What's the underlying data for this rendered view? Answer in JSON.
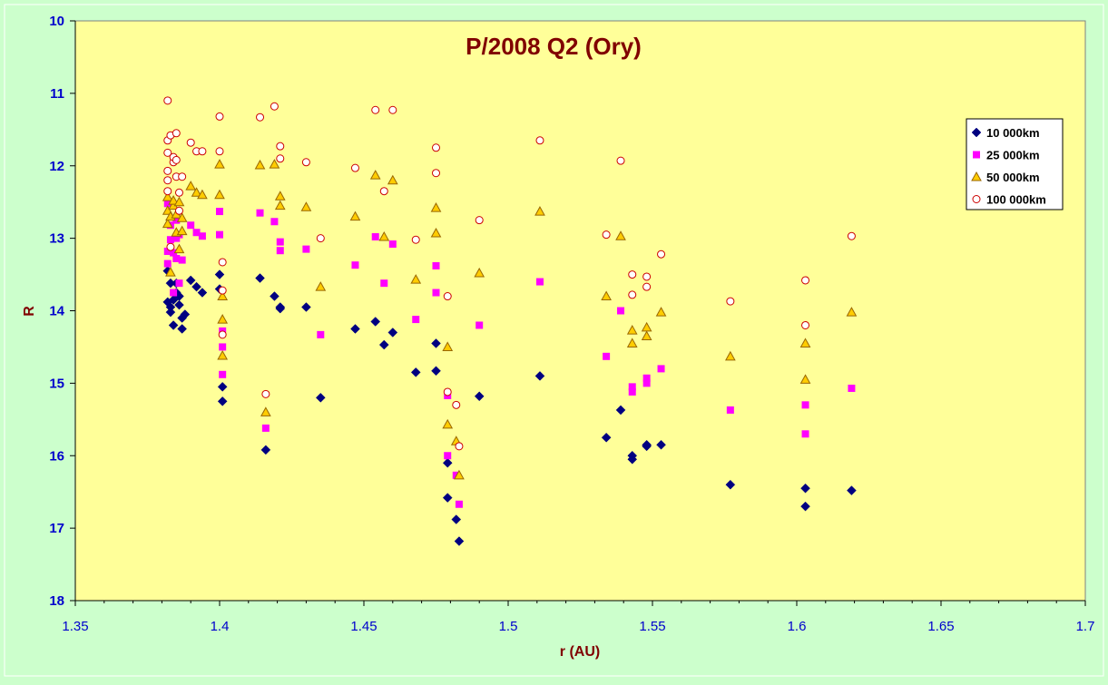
{
  "chart_data": {
    "type": "scatter",
    "title": "P/2008 Q2 (Ory)",
    "xlabel": "r (AU)",
    "ylabel": "R",
    "xlim": [
      1.35,
      1.7
    ],
    "ylim": [
      10,
      18
    ],
    "y_reversed": true,
    "grid": false,
    "legend_position": "right",
    "x_ticks": [
      "1.35",
      "1.4",
      "1.45",
      "1.5",
      "1.55",
      "1.6",
      "1.65",
      "1.7"
    ],
    "x_tick_values": [
      1.35,
      1.4,
      1.45,
      1.5,
      1.55,
      1.6,
      1.65,
      1.7
    ],
    "y_ticks": [
      "10",
      "11",
      "12",
      "13",
      "14",
      "15",
      "16",
      "17",
      "18"
    ],
    "y_tick_values": [
      10,
      11,
      12,
      13,
      14,
      15,
      16,
      17,
      18
    ],
    "colors": {
      "plot_background": "#ffff99",
      "page_background": "#ccffcc",
      "title": "#800000",
      "tick_labels": "#0000cc"
    },
    "series": [
      {
        "name": "10 000km",
        "marker": "diamond",
        "color": "#000080",
        "points": [
          [
            1.382,
            13.88
          ],
          [
            1.382,
            13.45
          ],
          [
            1.383,
            14.02
          ],
          [
            1.383,
            13.95
          ],
          [
            1.383,
            13.62
          ],
          [
            1.384,
            13.85
          ],
          [
            1.384,
            14.2
          ],
          [
            1.385,
            13.75
          ],
          [
            1.385,
            13.62
          ],
          [
            1.386,
            13.92
          ],
          [
            1.386,
            13.8
          ],
          [
            1.387,
            14.1
          ],
          [
            1.387,
            14.25
          ],
          [
            1.388,
            14.05
          ],
          [
            1.39,
            13.58
          ],
          [
            1.392,
            13.67
          ],
          [
            1.394,
            13.75
          ],
          [
            1.4,
            13.5
          ],
          [
            1.4,
            13.7
          ],
          [
            1.401,
            15.05
          ],
          [
            1.401,
            15.25
          ],
          [
            1.414,
            13.55
          ],
          [
            1.416,
            15.92
          ],
          [
            1.419,
            13.8
          ],
          [
            1.421,
            13.95
          ],
          [
            1.421,
            13.97
          ],
          [
            1.43,
            13.95
          ],
          [
            1.435,
            15.2
          ],
          [
            1.447,
            14.25
          ],
          [
            1.454,
            14.15
          ],
          [
            1.457,
            14.47
          ],
          [
            1.46,
            14.3
          ],
          [
            1.468,
            14.85
          ],
          [
            1.475,
            14.45
          ],
          [
            1.475,
            14.83
          ],
          [
            1.479,
            16.1
          ],
          [
            1.479,
            16.58
          ],
          [
            1.482,
            16.88
          ],
          [
            1.483,
            17.18
          ],
          [
            1.49,
            15.18
          ],
          [
            1.511,
            14.9
          ],
          [
            1.534,
            15.75
          ],
          [
            1.539,
            15.37
          ],
          [
            1.543,
            16.0
          ],
          [
            1.543,
            16.05
          ],
          [
            1.548,
            15.85
          ],
          [
            1.548,
            15.87
          ],
          [
            1.553,
            15.85
          ],
          [
            1.577,
            16.4
          ],
          [
            1.603,
            16.45
          ],
          [
            1.603,
            16.7
          ],
          [
            1.619,
            16.48
          ]
        ]
      },
      {
        "name": "25 000km",
        "marker": "square",
        "color": "#ff00ff",
        "points": [
          [
            1.382,
            12.52
          ],
          [
            1.382,
            13.18
          ],
          [
            1.382,
            13.35
          ],
          [
            1.383,
            12.82
          ],
          [
            1.383,
            13.02
          ],
          [
            1.384,
            13.2
          ],
          [
            1.384,
            13.75
          ],
          [
            1.385,
            12.75
          ],
          [
            1.385,
            13.0
          ],
          [
            1.385,
            13.28
          ],
          [
            1.386,
            13.62
          ],
          [
            1.386,
            12.95
          ],
          [
            1.387,
            13.3
          ],
          [
            1.39,
            12.82
          ],
          [
            1.392,
            12.92
          ],
          [
            1.394,
            12.97
          ],
          [
            1.4,
            12.63
          ],
          [
            1.4,
            12.95
          ],
          [
            1.401,
            14.28
          ],
          [
            1.401,
            14.5
          ],
          [
            1.401,
            14.88
          ],
          [
            1.414,
            12.65
          ],
          [
            1.416,
            15.62
          ],
          [
            1.419,
            12.77
          ],
          [
            1.421,
            13.05
          ],
          [
            1.421,
            13.17
          ],
          [
            1.43,
            13.15
          ],
          [
            1.435,
            14.33
          ],
          [
            1.447,
            13.37
          ],
          [
            1.454,
            12.98
          ],
          [
            1.457,
            13.62
          ],
          [
            1.46,
            13.08
          ],
          [
            1.468,
            14.12
          ],
          [
            1.475,
            13.38
          ],
          [
            1.475,
            13.75
          ],
          [
            1.479,
            15.17
          ],
          [
            1.479,
            16.0
          ],
          [
            1.482,
            16.27
          ],
          [
            1.483,
            16.67
          ],
          [
            1.49,
            14.2
          ],
          [
            1.511,
            13.6
          ],
          [
            1.534,
            14.63
          ],
          [
            1.539,
            14.0
          ],
          [
            1.543,
            15.05
          ],
          [
            1.543,
            15.12
          ],
          [
            1.548,
            14.93
          ],
          [
            1.548,
            15.0
          ],
          [
            1.553,
            14.8
          ],
          [
            1.577,
            15.37
          ],
          [
            1.603,
            15.3
          ],
          [
            1.603,
            15.7
          ],
          [
            1.619,
            15.07
          ]
        ]
      },
      {
        "name": "50 000km",
        "marker": "triangle",
        "color": "#ffcc00",
        "points": [
          [
            1.382,
            12.43
          ],
          [
            1.382,
            12.62
          ],
          [
            1.382,
            12.8
          ],
          [
            1.383,
            13.47
          ],
          [
            1.383,
            12.7
          ],
          [
            1.384,
            12.55
          ],
          [
            1.384,
            12.48
          ],
          [
            1.385,
            12.92
          ],
          [
            1.385,
            12.67
          ],
          [
            1.386,
            12.5
          ],
          [
            1.386,
            13.15
          ],
          [
            1.387,
            12.72
          ],
          [
            1.387,
            12.9
          ],
          [
            1.39,
            12.28
          ],
          [
            1.392,
            12.37
          ],
          [
            1.394,
            12.4
          ],
          [
            1.4,
            11.98
          ],
          [
            1.4,
            12.4
          ],
          [
            1.401,
            13.8
          ],
          [
            1.401,
            14.12
          ],
          [
            1.401,
            14.62
          ],
          [
            1.414,
            11.99
          ],
          [
            1.416,
            15.4
          ],
          [
            1.419,
            11.98
          ],
          [
            1.421,
            12.42
          ],
          [
            1.421,
            12.55
          ],
          [
            1.43,
            12.57
          ],
          [
            1.435,
            13.67
          ],
          [
            1.447,
            12.7
          ],
          [
            1.454,
            12.13
          ],
          [
            1.457,
            12.98
          ],
          [
            1.46,
            12.2
          ],
          [
            1.468,
            13.57
          ],
          [
            1.475,
            12.58
          ],
          [
            1.475,
            12.93
          ],
          [
            1.479,
            14.5
          ],
          [
            1.479,
            15.57
          ],
          [
            1.482,
            15.8
          ],
          [
            1.483,
            16.27
          ],
          [
            1.49,
            13.48
          ],
          [
            1.511,
            12.63
          ],
          [
            1.534,
            13.8
          ],
          [
            1.539,
            12.97
          ],
          [
            1.543,
            14.27
          ],
          [
            1.543,
            14.45
          ],
          [
            1.548,
            14.23
          ],
          [
            1.548,
            14.35
          ],
          [
            1.553,
            14.02
          ],
          [
            1.577,
            14.63
          ],
          [
            1.603,
            14.45
          ],
          [
            1.603,
            14.95
          ],
          [
            1.619,
            14.02
          ]
        ]
      },
      {
        "name": "100 000km",
        "marker": "circle",
        "color": "#cc0000",
        "points": [
          [
            1.382,
            11.1
          ],
          [
            1.382,
            11.65
          ],
          [
            1.382,
            11.82
          ],
          [
            1.382,
            12.07
          ],
          [
            1.382,
            12.2
          ],
          [
            1.382,
            12.35
          ],
          [
            1.383,
            11.58
          ],
          [
            1.383,
            13.12
          ],
          [
            1.384,
            11.95
          ],
          [
            1.384,
            11.88
          ],
          [
            1.385,
            11.55
          ],
          [
            1.385,
            11.92
          ],
          [
            1.385,
            12.15
          ],
          [
            1.386,
            12.37
          ],
          [
            1.386,
            12.62
          ],
          [
            1.387,
            12.15
          ],
          [
            1.39,
            11.68
          ],
          [
            1.392,
            11.8
          ],
          [
            1.394,
            11.8
          ],
          [
            1.4,
            11.32
          ],
          [
            1.4,
            11.8
          ],
          [
            1.401,
            13.33
          ],
          [
            1.401,
            13.72
          ],
          [
            1.401,
            14.33
          ],
          [
            1.414,
            11.33
          ],
          [
            1.416,
            15.15
          ],
          [
            1.419,
            11.18
          ],
          [
            1.421,
            11.73
          ],
          [
            1.421,
            11.9
          ],
          [
            1.43,
            11.95
          ],
          [
            1.435,
            13.0
          ],
          [
            1.447,
            12.03
          ],
          [
            1.454,
            11.23
          ],
          [
            1.457,
            12.35
          ],
          [
            1.46,
            11.23
          ],
          [
            1.468,
            13.02
          ],
          [
            1.475,
            11.75
          ],
          [
            1.475,
            12.1
          ],
          [
            1.479,
            13.8
          ],
          [
            1.479,
            15.12
          ],
          [
            1.482,
            15.3
          ],
          [
            1.483,
            15.87
          ],
          [
            1.49,
            12.75
          ],
          [
            1.511,
            11.65
          ],
          [
            1.534,
            12.95
          ],
          [
            1.539,
            11.93
          ],
          [
            1.543,
            13.5
          ],
          [
            1.543,
            13.78
          ],
          [
            1.548,
            13.53
          ],
          [
            1.548,
            13.67
          ],
          [
            1.553,
            13.22
          ],
          [
            1.577,
            13.87
          ],
          [
            1.603,
            13.58
          ],
          [
            1.603,
            14.2
          ],
          [
            1.619,
            12.97
          ]
        ]
      }
    ]
  }
}
